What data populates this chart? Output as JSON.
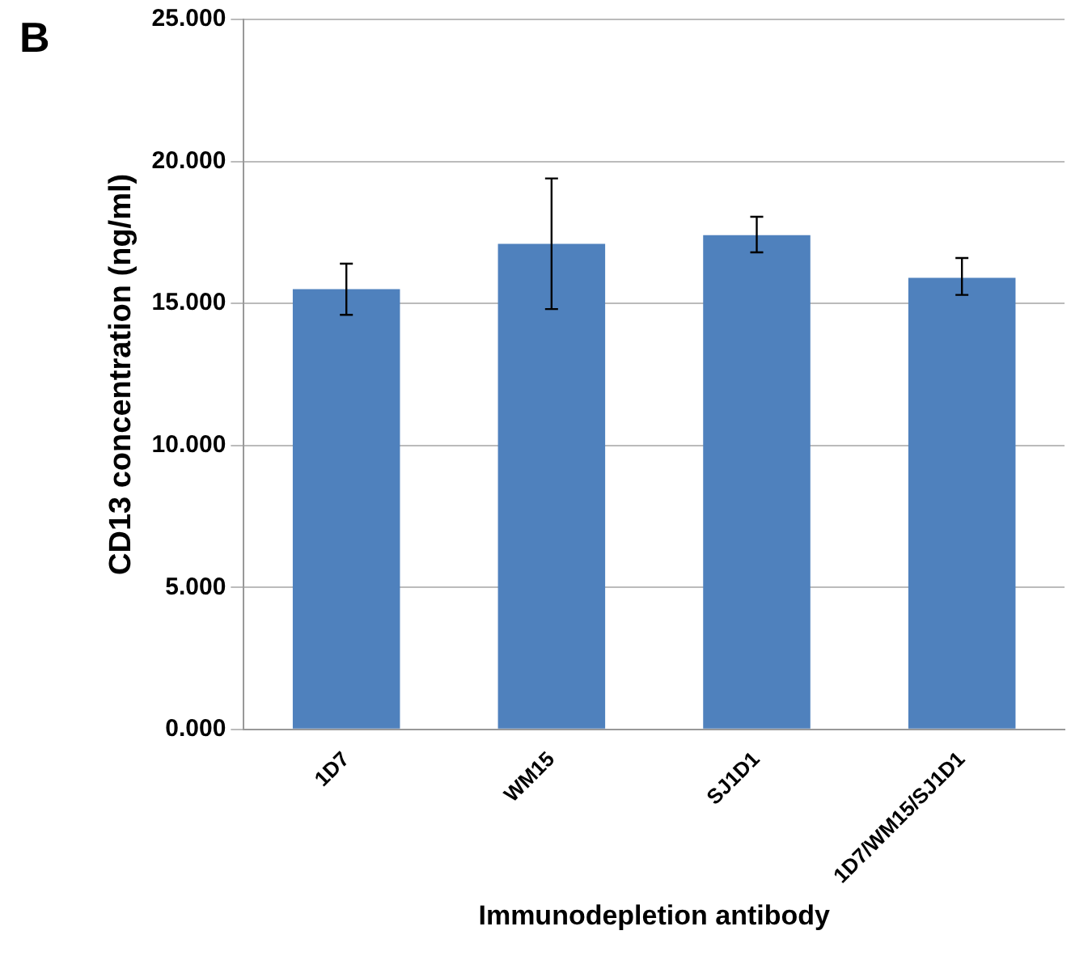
{
  "chart_data": {
    "type": "bar",
    "categories": [
      "1D7",
      "WM15",
      "SJ1D1",
      "1D7/WM15/SJ1D1"
    ],
    "values": [
      15.5,
      17.1,
      17.4,
      15.9
    ],
    "errors": [
      [
        14.6,
        16.4
      ],
      [
        14.8,
        19.4
      ],
      [
        16.8,
        18.05
      ],
      [
        15.3,
        16.6
      ]
    ],
    "color": "#4f81bd",
    "ylabel": "CD13 concentration (ng/ml)",
    "xlabel": "Immunodepletion antibody",
    "annotations": [
      "B"
    ],
    "ylim": [
      0,
      25
    ],
    "yticks": [
      {
        "value": 0,
        "label": "0.000"
      },
      {
        "value": 5,
        "label": "5.000"
      },
      {
        "value": 10,
        "label": "10.000"
      },
      {
        "value": 15,
        "label": "15.000"
      },
      {
        "value": 20,
        "label": "20.000"
      },
      {
        "value": 25,
        "label": "25.000"
      }
    ],
    "grid": "y",
    "legend": false
  }
}
